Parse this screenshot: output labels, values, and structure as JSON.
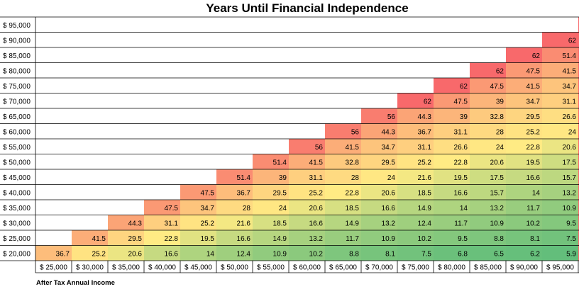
{
  "title": "Years Until Financial Independence",
  "x_axis_label": "After Tax Annual Income",
  "row_labels": [
    "$ 95,000",
    "$ 90,000",
    "$ 85,000",
    "$ 80,000",
    "$ 75,000",
    "$ 70,000",
    "$ 65,000",
    "$ 60,000",
    "$ 55,000",
    "$ 50,000",
    "$ 45,000",
    "$ 40,000",
    "$ 35,000",
    "$ 30,000",
    "$ 25,000",
    "$ 20,000"
  ],
  "column_labels": [
    "$ 25,000",
    "$ 30,000",
    "$ 35,000",
    "$ 40,000",
    "$ 45,000",
    "$ 50,000",
    "$ 55,000",
    "$ 60,000",
    "$ 65,000",
    "$ 70,000",
    "$ 75,000",
    "$ 80,000",
    "$ 85,000",
    "$ 90,000",
    "$ 95,000"
  ],
  "colors": {
    "high": "#f8696b",
    "mid": "#ffeb84",
    "low": "#63be7b",
    "grid": "#000000"
  },
  "chart_data": {
    "type": "heatmap",
    "title": "Years Until Financial Independence",
    "xlabel": "After Tax Annual Income",
    "ylabel": "",
    "x_categories": [
      "$ 25,000",
      "$ 30,000",
      "$ 35,000",
      "$ 40,000",
      "$ 45,000",
      "$ 50,000",
      "$ 55,000",
      "$ 60,000",
      "$ 65,000",
      "$ 70,000",
      "$ 75,000",
      "$ 80,000",
      "$ 85,000",
      "$ 90,000",
      "$ 95,000"
    ],
    "y_categories": [
      "$ 95,000",
      "$ 90,000",
      "$ 85,000",
      "$ 80,000",
      "$ 75,000",
      "$ 70,000",
      "$ 65,000",
      "$ 60,000",
      "$ 55,000",
      "$ 50,000",
      "$ 45,000",
      "$ 40,000",
      "$ 35,000",
      "$ 30,000",
      "$ 25,000",
      "$ 20,000"
    ],
    "values": [
      [
        null,
        null,
        null,
        null,
        null,
        null,
        null,
        null,
        null,
        null,
        null,
        null,
        null,
        null,
        null
      ],
      [
        null,
        null,
        null,
        null,
        null,
        null,
        null,
        null,
        null,
        null,
        null,
        null,
        null,
        null,
        "62"
      ],
      [
        null,
        null,
        null,
        null,
        null,
        null,
        null,
        null,
        null,
        null,
        null,
        null,
        null,
        "62",
        "51.4"
      ],
      [
        null,
        null,
        null,
        null,
        null,
        null,
        null,
        null,
        null,
        null,
        null,
        null,
        "62",
        "47.5",
        "41.5"
      ],
      [
        null,
        null,
        null,
        null,
        null,
        null,
        null,
        null,
        null,
        null,
        null,
        "62",
        "47.5",
        "41.5",
        "34.7"
      ],
      [
        null,
        null,
        null,
        null,
        null,
        null,
        null,
        null,
        null,
        null,
        "62",
        "47.5",
        "39",
        "34.7",
        "31.1"
      ],
      [
        null,
        null,
        null,
        null,
        null,
        null,
        null,
        null,
        null,
        "56",
        "44.3",
        "39",
        "32.8",
        "29.5",
        "26.6"
      ],
      [
        null,
        null,
        null,
        null,
        null,
        null,
        null,
        null,
        "56",
        "44.3",
        "36.7",
        "31.1",
        "28",
        "25.2",
        "24"
      ],
      [
        null,
        null,
        null,
        null,
        null,
        null,
        null,
        "56",
        "41.5",
        "34.7",
        "31.1",
        "26.6",
        "24",
        "22.8",
        "20.6"
      ],
      [
        null,
        null,
        null,
        null,
        null,
        null,
        "51.4",
        "41.5",
        "32.8",
        "29.5",
        "25.2",
        "22.8",
        "20.6",
        "19.5",
        "17.5"
      ],
      [
        null,
        null,
        null,
        null,
        null,
        "51.4",
        "39",
        "31.1",
        "28",
        "24",
        "21.6",
        "19.5",
        "17.5",
        "16.6",
        "15.7"
      ],
      [
        null,
        null,
        null,
        null,
        "47.5",
        "36.7",
        "29.5",
        "25.2",
        "22.8",
        "20.6",
        "18.5",
        "16.6",
        "15.7",
        "14",
        "13.2"
      ],
      [
        null,
        null,
        null,
        "47.5",
        "34.7",
        "28",
        "24",
        "20.6",
        "18.5",
        "16.6",
        "14.9",
        "14",
        "13.2",
        "11.7",
        "10.9"
      ],
      [
        null,
        null,
        "44.3",
        "31.1",
        "25.2",
        "21.6",
        "18.5",
        "16.6",
        "14.9",
        "13.2",
        "12.4",
        "11.7",
        "10.9",
        "10.2",
        "9.5"
      ],
      [
        null,
        "41.5",
        "29.5",
        "22.8",
        "19.5",
        "16.6",
        "14.9",
        "13.2",
        "11.7",
        "10.9",
        "10.2",
        "9.5",
        "8.8",
        "8.1",
        "7.5"
      ],
      [
        "36.7",
        "25.2",
        "20.6",
        "16.6",
        "14",
        "12.4",
        "10.9",
        "10.2",
        "8.8",
        "8.1",
        "7.5",
        "6.8",
        "6.5",
        "6.2",
        "5.9"
      ]
    ],
    "color_scale": {
      "min_color": "#63be7b",
      "mid_color": "#ffeb84",
      "max_color": "#f8696b"
    },
    "grid": true
  }
}
